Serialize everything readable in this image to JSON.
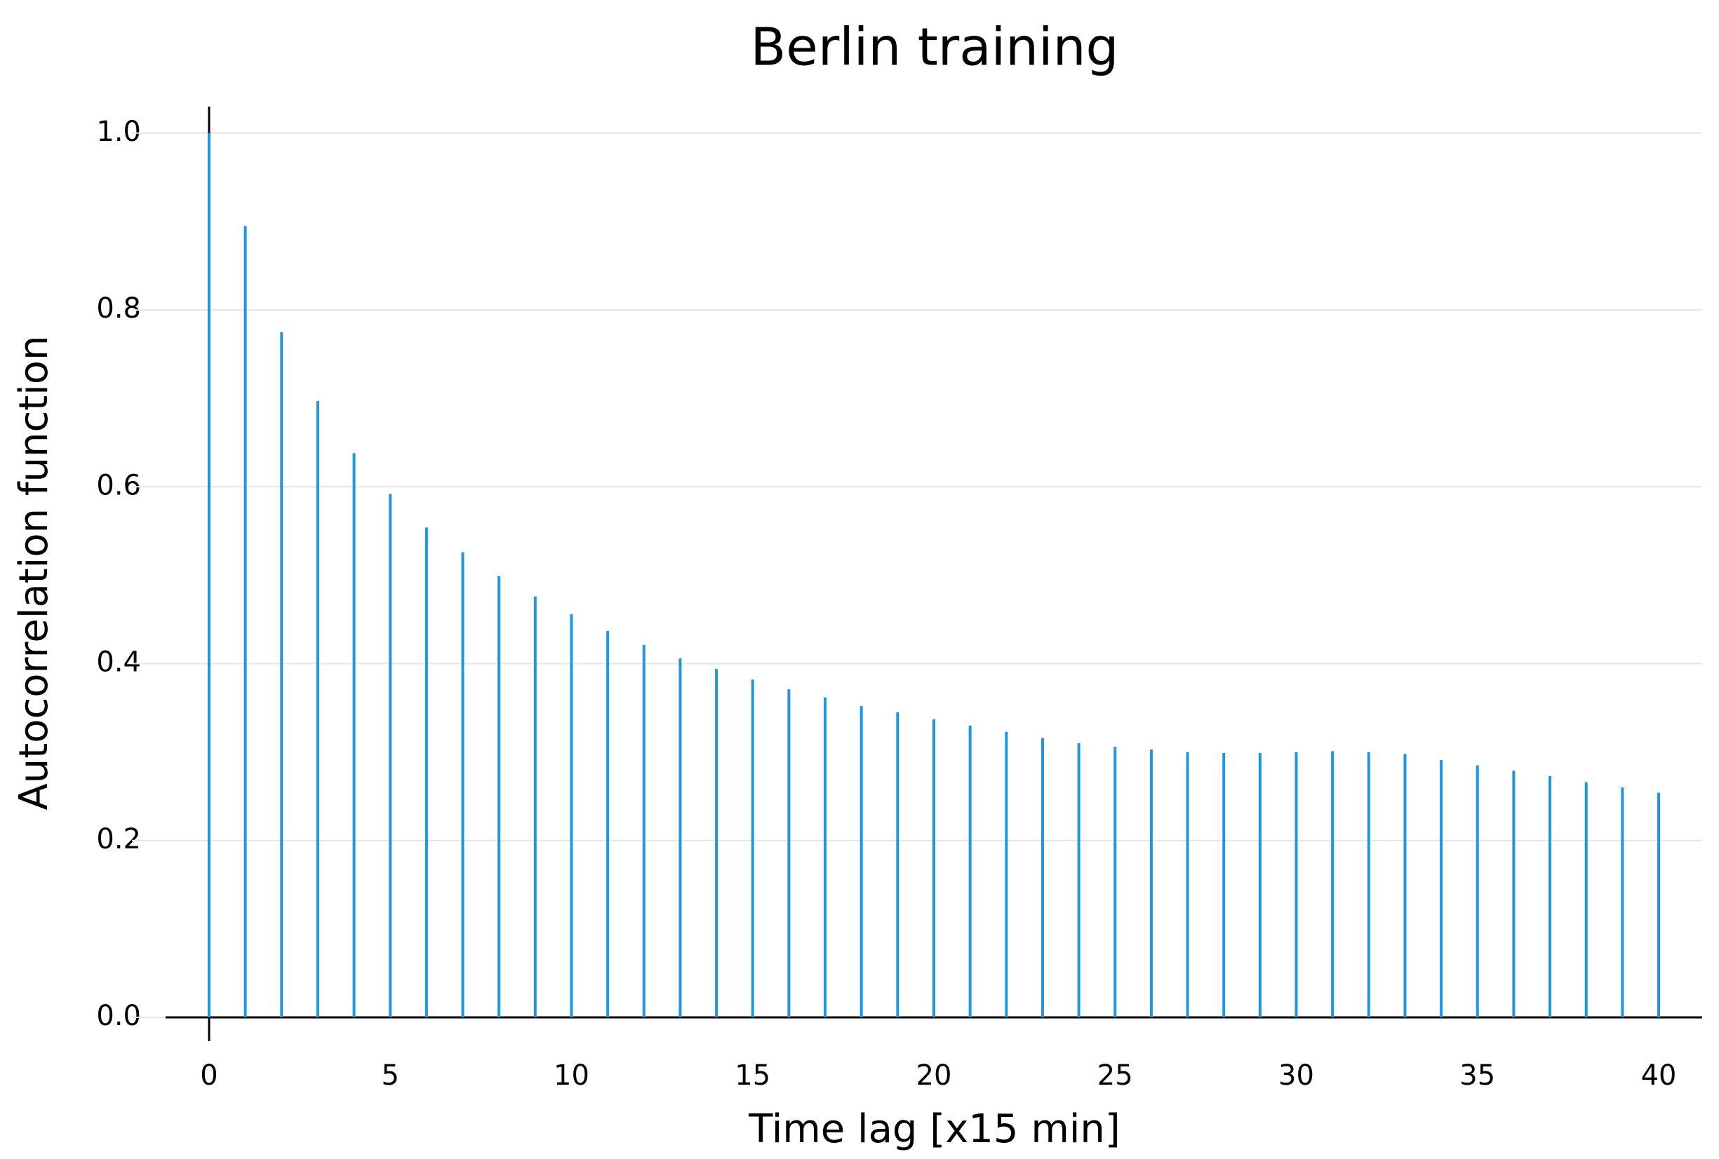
{
  "chart_data": {
    "type": "stem",
    "title": "Berlin training",
    "xlabel": "Time lag [x15 min]",
    "ylabel": "Autocorrelation function",
    "x": [
      0,
      1,
      2,
      3,
      4,
      5,
      6,
      7,
      8,
      9,
      10,
      11,
      12,
      13,
      14,
      15,
      16,
      17,
      18,
      19,
      20,
      21,
      22,
      23,
      24,
      25,
      26,
      27,
      28,
      29,
      30,
      31,
      32,
      33,
      34,
      35,
      36,
      37,
      38,
      39,
      40
    ],
    "values": [
      1.0,
      0.895,
      0.775,
      0.697,
      0.638,
      0.592,
      0.554,
      0.526,
      0.499,
      0.476,
      0.456,
      0.437,
      0.421,
      0.406,
      0.394,
      0.382,
      0.371,
      0.362,
      0.352,
      0.345,
      0.337,
      0.33,
      0.323,
      0.316,
      0.31,
      0.306,
      0.303,
      0.3,
      0.299,
      0.299,
      0.3,
      0.301,
      0.3,
      0.298,
      0.291,
      0.285,
      0.279,
      0.273,
      0.266,
      0.26,
      0.254
    ],
    "color": "#1f96e0",
    "xlim": [
      -1.2,
      41.2
    ],
    "ylim": [
      0,
      1.03
    ],
    "xticks": [
      0,
      5,
      10,
      15,
      20,
      25,
      30,
      35,
      40
    ],
    "yticks": [
      {
        "value": 0,
        "label": "0.0"
      },
      0.2,
      0.4,
      0.6,
      0.8,
      {
        "value": 1,
        "label": "1.0"
      }
    ],
    "grid": true
  }
}
